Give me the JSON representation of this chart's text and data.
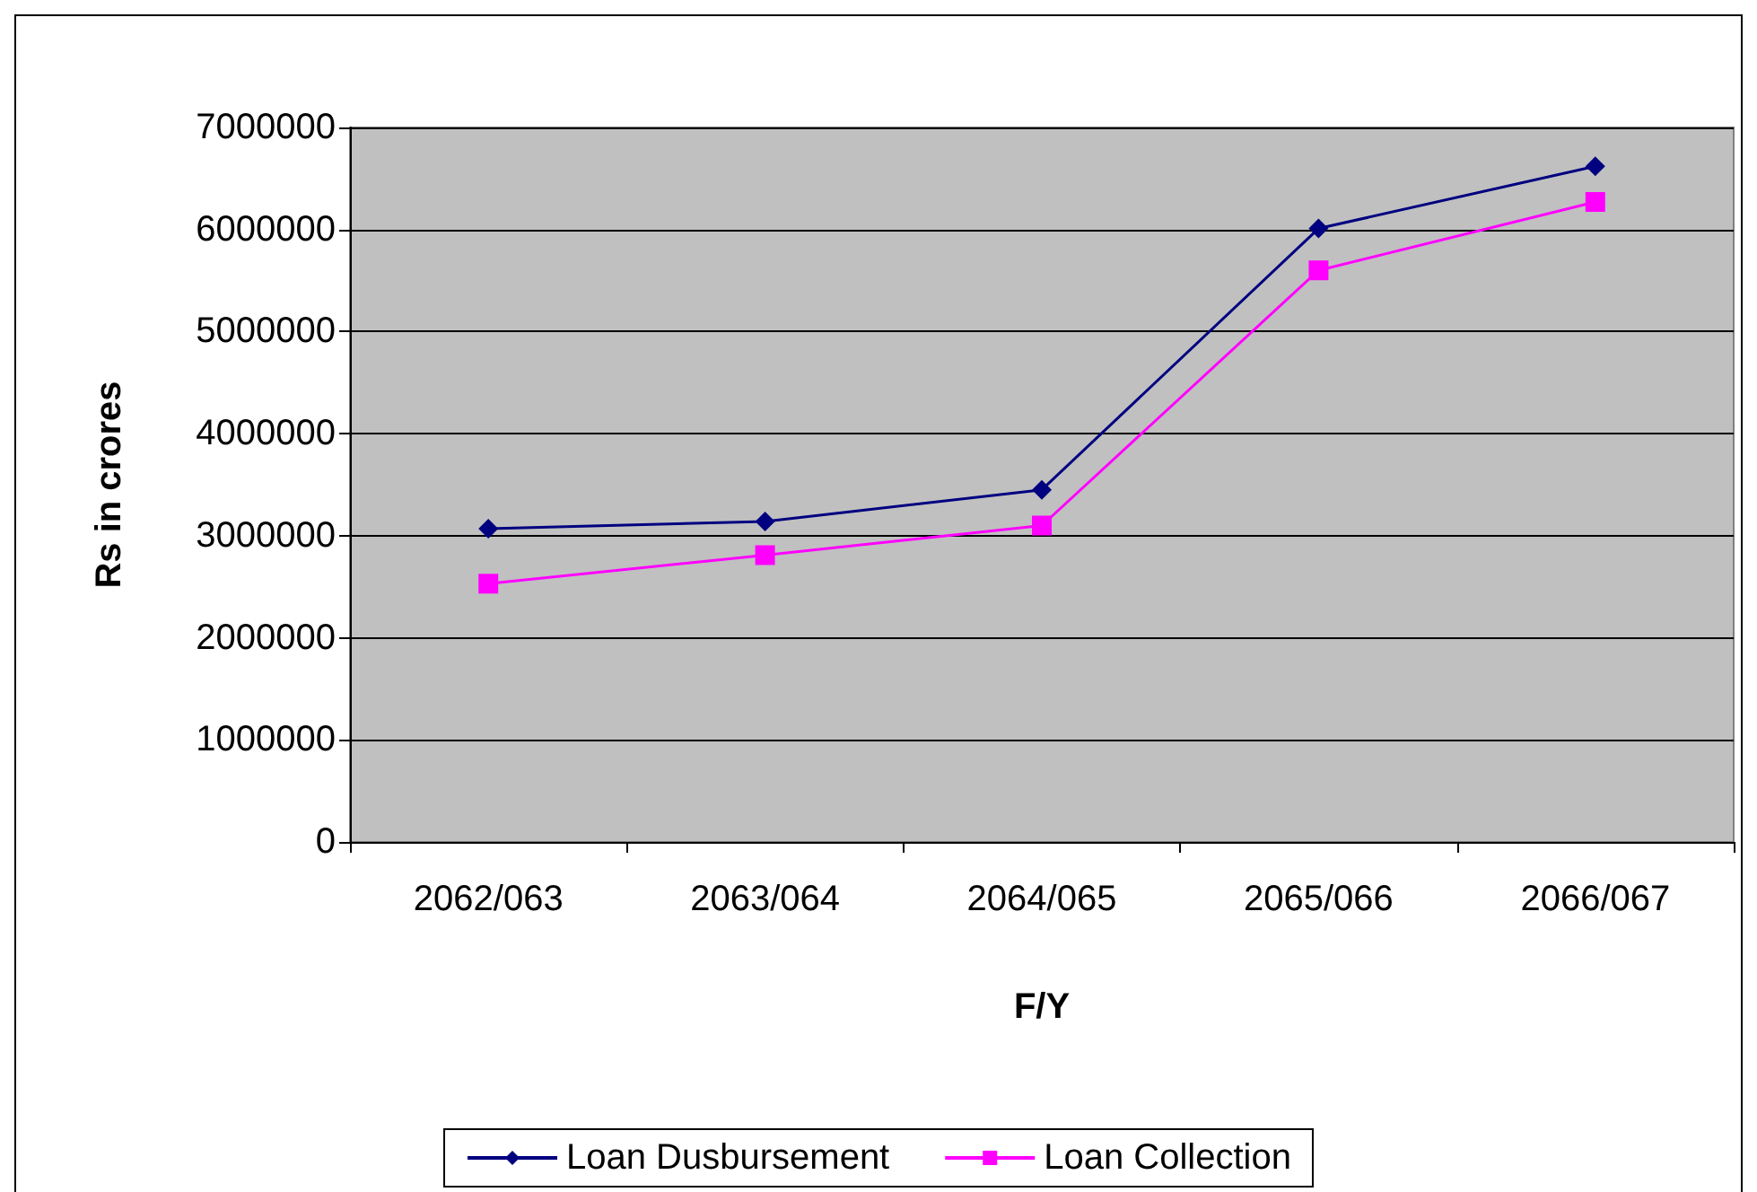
{
  "chart_data": {
    "type": "line",
    "xlabel": "F/Y",
    "ylabel": "Rs in crores",
    "categories": [
      "2062/063",
      "2063/064",
      "2064/065",
      "2065/066",
      "2066/067"
    ],
    "series": [
      {
        "name": "Loan Dusbursement",
        "color": "#000080",
        "marker": "diamond",
        "values": [
          3070000,
          3140000,
          3450000,
          6010000,
          6620000
        ]
      },
      {
        "name": "Loan Collection",
        "color": "#ff00ff",
        "marker": "square",
        "values": [
          2530000,
          2810000,
          3100000,
          5600000,
          6270000
        ]
      }
    ],
    "ylim": [
      0,
      7000000
    ],
    "yticks": [
      0,
      1000000,
      2000000,
      3000000,
      4000000,
      5000000,
      6000000,
      7000000
    ],
    "grid": "y",
    "legend": "bottom",
    "line_style": "solid"
  }
}
